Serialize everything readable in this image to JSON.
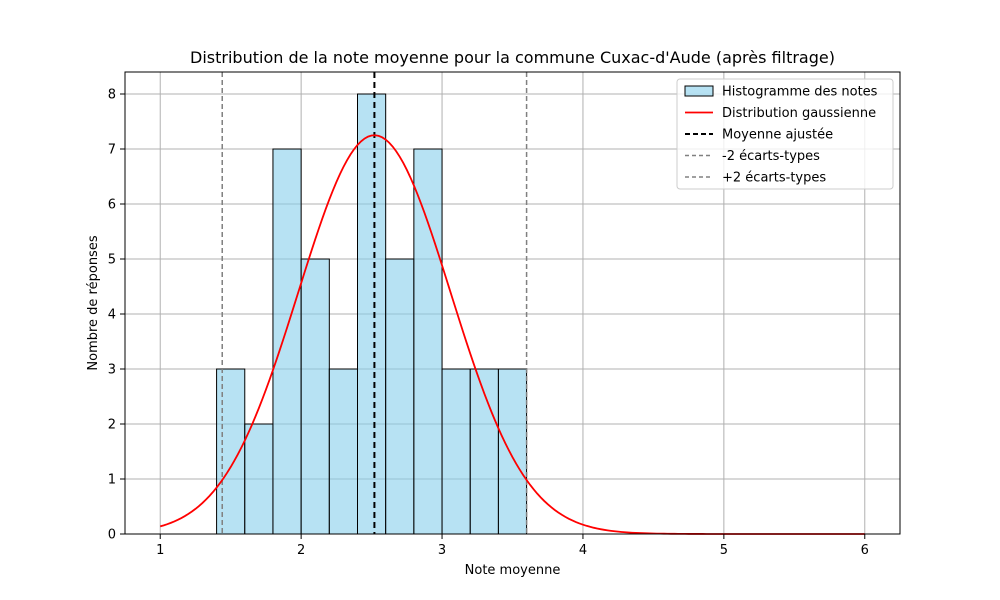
{
  "chart_data": {
    "type": "bar",
    "title": "Distribution de la note moyenne pour la commune Cuxac-d'Aude (après filtrage)",
    "xlabel": "Note moyenne",
    "ylabel": "Nombre de réponses",
    "xlim": [
      0.75,
      6.25
    ],
    "ylim": [
      0,
      8.4
    ],
    "x_ticks": [
      1,
      2,
      3,
      4,
      5,
      6
    ],
    "y_ticks": [
      0,
      1,
      2,
      3,
      4,
      5,
      6,
      7,
      8
    ],
    "grid": true,
    "legend_position": "top-right",
    "histogram": {
      "name": "Histogramme des notes",
      "color": "#87CEEB",
      "edge_color": "#000000",
      "bins": [
        {
          "x0": 1.4,
          "x1": 1.6,
          "count": 3
        },
        {
          "x0": 1.6,
          "x1": 1.8,
          "count": 2
        },
        {
          "x0": 1.8,
          "x1": 2.0,
          "count": 7
        },
        {
          "x0": 2.0,
          "x1": 2.2,
          "count": 5
        },
        {
          "x0": 2.2,
          "x1": 2.4,
          "count": 3
        },
        {
          "x0": 2.4,
          "x1": 2.6,
          "count": 8
        },
        {
          "x0": 2.6,
          "x1": 2.8,
          "count": 5
        },
        {
          "x0": 2.8,
          "x1": 3.0,
          "count": 7
        },
        {
          "x0": 3.0,
          "x1": 3.2,
          "count": 3
        },
        {
          "x0": 3.2,
          "x1": 3.4,
          "count": 3
        },
        {
          "x0": 3.4,
          "x1": 3.6,
          "count": 3
        }
      ]
    },
    "gaussian": {
      "name": "Distribution gaussienne",
      "color": "#ff0000",
      "mean": 2.52,
      "std": 0.54,
      "peak": 7.25,
      "x_range": [
        1,
        6
      ]
    },
    "mean_line": {
      "name": "Moyenne ajustée",
      "x": 2.52,
      "color": "#000000"
    },
    "std_lines": [
      {
        "name": "-2 écarts-types",
        "x": 1.44,
        "color": "#808080"
      },
      {
        "name": "+2 écarts-types",
        "x": 3.6,
        "color": "#808080"
      }
    ]
  }
}
